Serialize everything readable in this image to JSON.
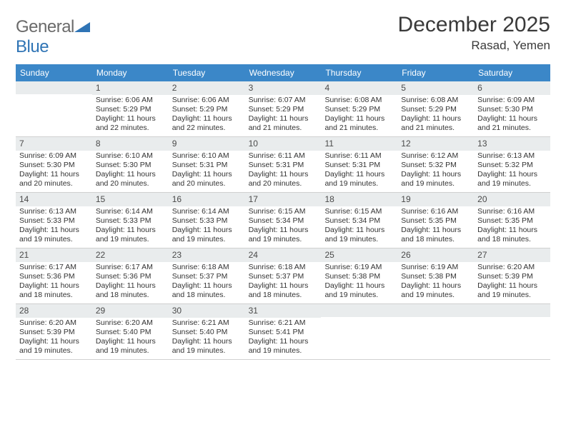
{
  "logo": {
    "part1": "General",
    "part2": "Blue"
  },
  "header": {
    "month": "December 2025",
    "location": "Rasad, Yemen"
  },
  "colors": {
    "header_bg": "#3b87c8",
    "header_text": "#ffffff",
    "daynum_bg": "#e9eced",
    "text": "#333333"
  },
  "daynames": [
    "Sunday",
    "Monday",
    "Tuesday",
    "Wednesday",
    "Thursday",
    "Friday",
    "Saturday"
  ],
  "weeks": [
    [
      null,
      {
        "n": "1",
        "sr": "Sunrise: 6:06 AM",
        "ss": "Sunset: 5:29 PM",
        "dl1": "Daylight: 11 hours",
        "dl2": "and 22 minutes."
      },
      {
        "n": "2",
        "sr": "Sunrise: 6:06 AM",
        "ss": "Sunset: 5:29 PM",
        "dl1": "Daylight: 11 hours",
        "dl2": "and 22 minutes."
      },
      {
        "n": "3",
        "sr": "Sunrise: 6:07 AM",
        "ss": "Sunset: 5:29 PM",
        "dl1": "Daylight: 11 hours",
        "dl2": "and 21 minutes."
      },
      {
        "n": "4",
        "sr": "Sunrise: 6:08 AM",
        "ss": "Sunset: 5:29 PM",
        "dl1": "Daylight: 11 hours",
        "dl2": "and 21 minutes."
      },
      {
        "n": "5",
        "sr": "Sunrise: 6:08 AM",
        "ss": "Sunset: 5:29 PM",
        "dl1": "Daylight: 11 hours",
        "dl2": "and 21 minutes."
      },
      {
        "n": "6",
        "sr": "Sunrise: 6:09 AM",
        "ss": "Sunset: 5:30 PM",
        "dl1": "Daylight: 11 hours",
        "dl2": "and 21 minutes."
      }
    ],
    [
      {
        "n": "7",
        "sr": "Sunrise: 6:09 AM",
        "ss": "Sunset: 5:30 PM",
        "dl1": "Daylight: 11 hours",
        "dl2": "and 20 minutes."
      },
      {
        "n": "8",
        "sr": "Sunrise: 6:10 AM",
        "ss": "Sunset: 5:30 PM",
        "dl1": "Daylight: 11 hours",
        "dl2": "and 20 minutes."
      },
      {
        "n": "9",
        "sr": "Sunrise: 6:10 AM",
        "ss": "Sunset: 5:31 PM",
        "dl1": "Daylight: 11 hours",
        "dl2": "and 20 minutes."
      },
      {
        "n": "10",
        "sr": "Sunrise: 6:11 AM",
        "ss": "Sunset: 5:31 PM",
        "dl1": "Daylight: 11 hours",
        "dl2": "and 20 minutes."
      },
      {
        "n": "11",
        "sr": "Sunrise: 6:11 AM",
        "ss": "Sunset: 5:31 PM",
        "dl1": "Daylight: 11 hours",
        "dl2": "and 19 minutes."
      },
      {
        "n": "12",
        "sr": "Sunrise: 6:12 AM",
        "ss": "Sunset: 5:32 PM",
        "dl1": "Daylight: 11 hours",
        "dl2": "and 19 minutes."
      },
      {
        "n": "13",
        "sr": "Sunrise: 6:13 AM",
        "ss": "Sunset: 5:32 PM",
        "dl1": "Daylight: 11 hours",
        "dl2": "and 19 minutes."
      }
    ],
    [
      {
        "n": "14",
        "sr": "Sunrise: 6:13 AM",
        "ss": "Sunset: 5:33 PM",
        "dl1": "Daylight: 11 hours",
        "dl2": "and 19 minutes."
      },
      {
        "n": "15",
        "sr": "Sunrise: 6:14 AM",
        "ss": "Sunset: 5:33 PM",
        "dl1": "Daylight: 11 hours",
        "dl2": "and 19 minutes."
      },
      {
        "n": "16",
        "sr": "Sunrise: 6:14 AM",
        "ss": "Sunset: 5:33 PM",
        "dl1": "Daylight: 11 hours",
        "dl2": "and 19 minutes."
      },
      {
        "n": "17",
        "sr": "Sunrise: 6:15 AM",
        "ss": "Sunset: 5:34 PM",
        "dl1": "Daylight: 11 hours",
        "dl2": "and 19 minutes."
      },
      {
        "n": "18",
        "sr": "Sunrise: 6:15 AM",
        "ss": "Sunset: 5:34 PM",
        "dl1": "Daylight: 11 hours",
        "dl2": "and 19 minutes."
      },
      {
        "n": "19",
        "sr": "Sunrise: 6:16 AM",
        "ss": "Sunset: 5:35 PM",
        "dl1": "Daylight: 11 hours",
        "dl2": "and 18 minutes."
      },
      {
        "n": "20",
        "sr": "Sunrise: 6:16 AM",
        "ss": "Sunset: 5:35 PM",
        "dl1": "Daylight: 11 hours",
        "dl2": "and 18 minutes."
      }
    ],
    [
      {
        "n": "21",
        "sr": "Sunrise: 6:17 AM",
        "ss": "Sunset: 5:36 PM",
        "dl1": "Daylight: 11 hours",
        "dl2": "and 18 minutes."
      },
      {
        "n": "22",
        "sr": "Sunrise: 6:17 AM",
        "ss": "Sunset: 5:36 PM",
        "dl1": "Daylight: 11 hours",
        "dl2": "and 18 minutes."
      },
      {
        "n": "23",
        "sr": "Sunrise: 6:18 AM",
        "ss": "Sunset: 5:37 PM",
        "dl1": "Daylight: 11 hours",
        "dl2": "and 18 minutes."
      },
      {
        "n": "24",
        "sr": "Sunrise: 6:18 AM",
        "ss": "Sunset: 5:37 PM",
        "dl1": "Daylight: 11 hours",
        "dl2": "and 18 minutes."
      },
      {
        "n": "25",
        "sr": "Sunrise: 6:19 AM",
        "ss": "Sunset: 5:38 PM",
        "dl1": "Daylight: 11 hours",
        "dl2": "and 19 minutes."
      },
      {
        "n": "26",
        "sr": "Sunrise: 6:19 AM",
        "ss": "Sunset: 5:38 PM",
        "dl1": "Daylight: 11 hours",
        "dl2": "and 19 minutes."
      },
      {
        "n": "27",
        "sr": "Sunrise: 6:20 AM",
        "ss": "Sunset: 5:39 PM",
        "dl1": "Daylight: 11 hours",
        "dl2": "and 19 minutes."
      }
    ],
    [
      {
        "n": "28",
        "sr": "Sunrise: 6:20 AM",
        "ss": "Sunset: 5:39 PM",
        "dl1": "Daylight: 11 hours",
        "dl2": "and 19 minutes."
      },
      {
        "n": "29",
        "sr": "Sunrise: 6:20 AM",
        "ss": "Sunset: 5:40 PM",
        "dl1": "Daylight: 11 hours",
        "dl2": "and 19 minutes."
      },
      {
        "n": "30",
        "sr": "Sunrise: 6:21 AM",
        "ss": "Sunset: 5:40 PM",
        "dl1": "Daylight: 11 hours",
        "dl2": "and 19 minutes."
      },
      {
        "n": "31",
        "sr": "Sunrise: 6:21 AM",
        "ss": "Sunset: 5:41 PM",
        "dl1": "Daylight: 11 hours",
        "dl2": "and 19 minutes."
      },
      null,
      null,
      null
    ]
  ]
}
